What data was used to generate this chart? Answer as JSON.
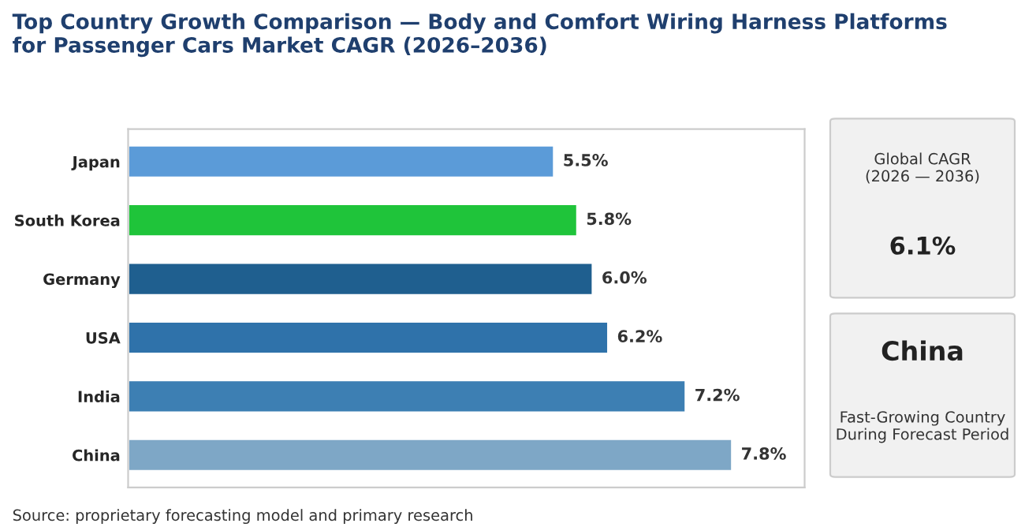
{
  "chart_data": {
    "type": "bar",
    "orientation": "horizontal",
    "title": "Top Country Growth Comparison — Body and Comfort Wiring Harness Platforms\nfor Passenger Cars Market CAGR (2026–2036)",
    "categories": [
      "Japan",
      "South Korea",
      "Germany",
      "USA",
      "India",
      "China"
    ],
    "values": [
      5.5,
      5.8,
      6.0,
      6.2,
      7.2,
      7.8
    ],
    "colors": [
      "#5b9bd8",
      "#1fc43a",
      "#1f5f8f",
      "#2f72aa",
      "#3d7fb3",
      "#7ea7c6"
    ],
    "value_labels": [
      "5.5%",
      "5.8%",
      "6.0%",
      "6.2%",
      "7.2%",
      "7.8%"
    ],
    "tick_labels": "y",
    "grid": false,
    "annotations": [
      "Global CAGR\n(2026 — 2036)",
      "6.1%",
      "China",
      "Fast-Growing Country\nDuring Forecast Period",
      "Source: proprietary forecasting model and primary research"
    ]
  }
}
